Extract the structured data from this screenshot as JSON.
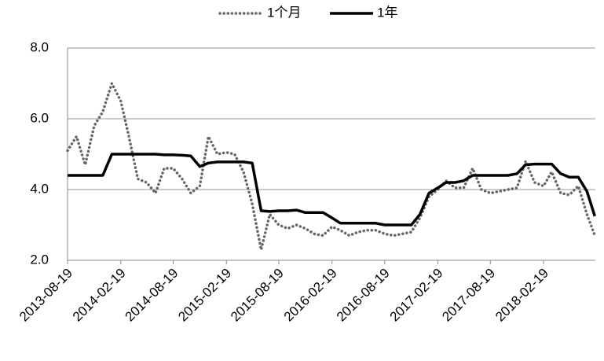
{
  "chart_data": {
    "type": "line",
    "x": [
      "2013-08-19",
      "2013-09-19",
      "2013-10-19",
      "2013-11-19",
      "2013-12-19",
      "2014-01-19",
      "2014-02-19",
      "2014-03-19",
      "2014-04-19",
      "2014-05-19",
      "2014-06-19",
      "2014-07-19",
      "2014-08-19",
      "2014-09-19",
      "2014-10-19",
      "2014-11-19",
      "2014-12-19",
      "2015-01-19",
      "2015-02-19",
      "2015-03-19",
      "2015-04-19",
      "2015-05-19",
      "2015-06-19",
      "2015-07-19",
      "2015-08-19",
      "2015-09-19",
      "2015-10-19",
      "2015-11-19",
      "2015-12-19",
      "2016-01-19",
      "2016-02-19",
      "2016-03-19",
      "2016-04-19",
      "2016-05-19",
      "2016-06-19",
      "2016-07-19",
      "2016-08-19",
      "2016-09-19",
      "2016-10-19",
      "2016-11-19",
      "2016-12-19",
      "2017-01-19",
      "2017-02-19",
      "2017-03-19",
      "2017-04-19",
      "2017-05-19",
      "2017-06-19",
      "2017-07-19",
      "2017-08-19",
      "2017-09-19",
      "2017-10-19",
      "2017-11-19",
      "2017-12-19",
      "2018-01-19",
      "2018-02-19",
      "2018-03-19",
      "2018-04-19",
      "2018-05-19",
      "2018-06-19",
      "2018-07-19",
      "2018-08-15"
    ],
    "series": [
      {
        "name": "1个月",
        "color": "#666666",
        "style": "dotted",
        "values": [
          5.1,
          5.5,
          4.7,
          5.8,
          6.2,
          7.0,
          6.5,
          5.5,
          4.3,
          4.2,
          3.9,
          4.6,
          4.6,
          4.3,
          3.9,
          4.1,
          5.5,
          5.0,
          5.05,
          5.0,
          4.5,
          3.6,
          2.3,
          3.3,
          3.0,
          2.9,
          3.0,
          2.9,
          2.75,
          2.7,
          2.95,
          2.85,
          2.7,
          2.8,
          2.85,
          2.85,
          2.75,
          2.7,
          2.75,
          2.8,
          3.2,
          3.8,
          4.0,
          4.25,
          4.05,
          4.05,
          4.6,
          4.0,
          3.9,
          3.95,
          4.0,
          4.05,
          4.8,
          4.2,
          4.1,
          4.5,
          3.9,
          3.85,
          4.1,
          3.3,
          2.7
        ]
      },
      {
        "name": "1年",
        "color": "#000000",
        "style": "solid",
        "values": [
          4.4,
          4.4,
          4.4,
          4.4,
          4.4,
          5.0,
          5.0,
          5.0,
          5.0,
          5.0,
          5.0,
          4.98,
          4.98,
          4.97,
          4.95,
          4.65,
          4.75,
          4.78,
          4.78,
          4.78,
          4.78,
          4.75,
          3.4,
          3.38,
          3.4,
          3.4,
          3.42,
          3.35,
          3.35,
          3.35,
          3.2,
          3.05,
          3.05,
          3.05,
          3.05,
          3.05,
          3.0,
          3.0,
          3.0,
          3.0,
          3.3,
          3.9,
          4.05,
          4.2,
          4.2,
          4.25,
          4.4,
          4.4,
          4.4,
          4.4,
          4.4,
          4.45,
          4.7,
          4.72,
          4.72,
          4.72,
          4.45,
          4.35,
          4.35,
          3.95,
          3.25
        ]
      }
    ],
    "xlim": [
      "2013-08-19",
      "2018-08-17"
    ],
    "xticks": [
      "2013-08-19",
      "2014-02-19",
      "2014-08-19",
      "2015-02-19",
      "2015-08-19",
      "2016-02-19",
      "2016-08-19",
      "2017-02-19",
      "2017-08-19",
      "2018-02-19"
    ],
    "ylim": [
      2,
      8
    ],
    "yticks": [
      {
        "value": 2,
        "label": "2.0"
      },
      {
        "value": 4,
        "label": "4.0"
      },
      {
        "value": 6,
        "label": "6.0"
      },
      {
        "value": 8,
        "label": "8.0"
      }
    ],
    "grid": true,
    "legend": "top"
  }
}
